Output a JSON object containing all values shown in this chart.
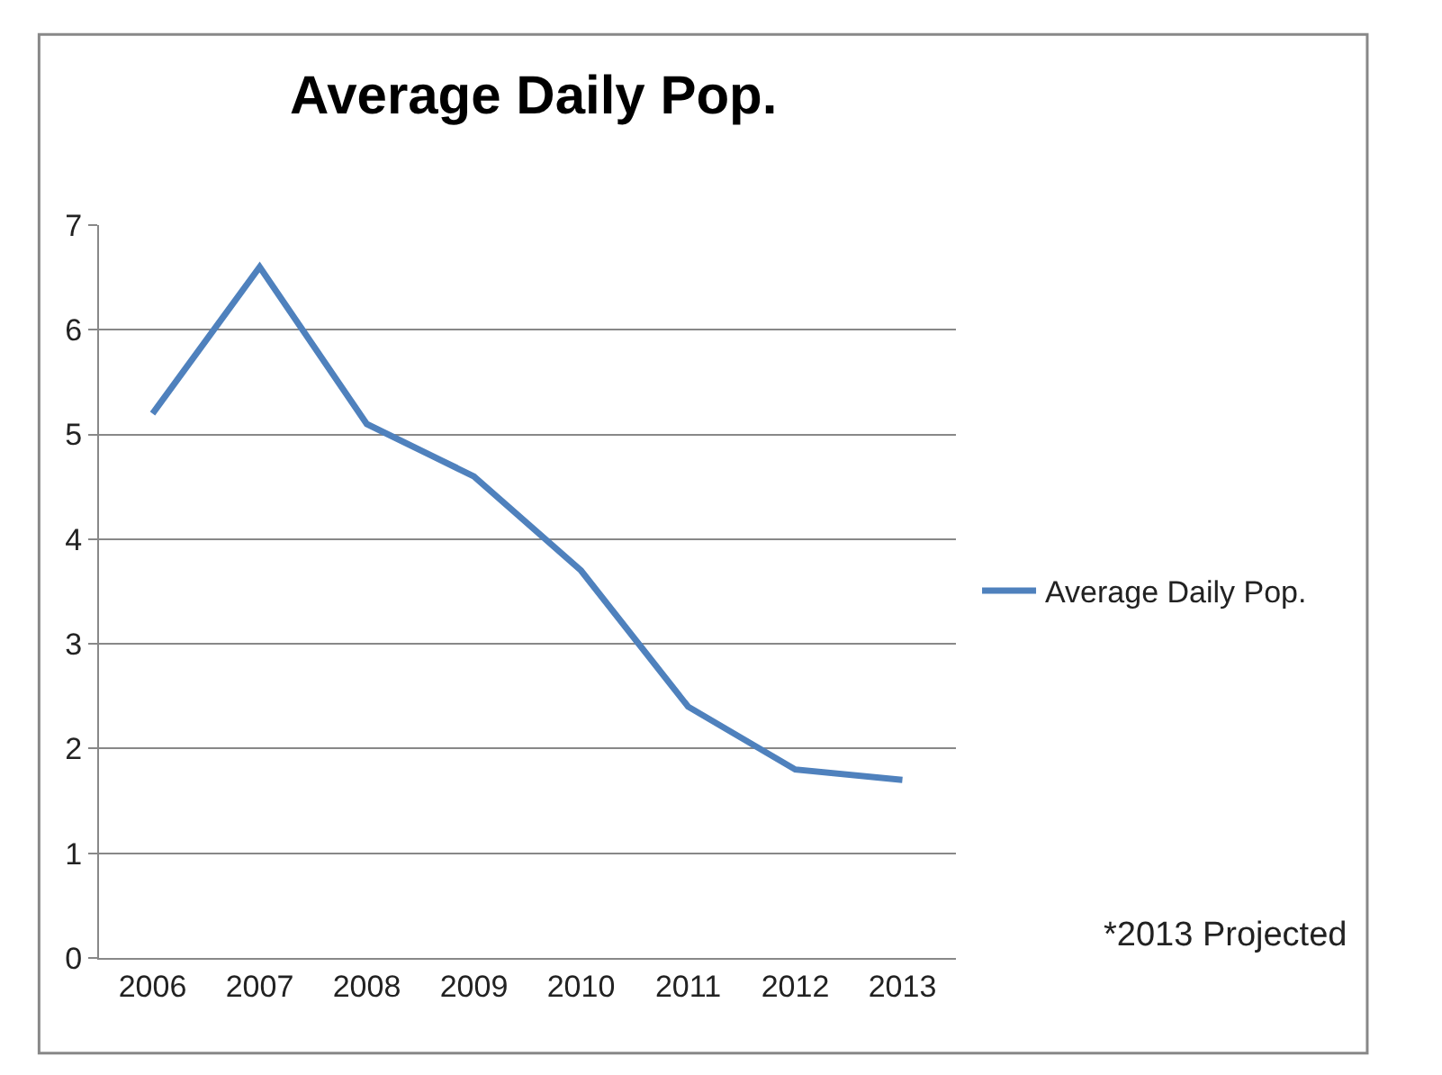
{
  "chart_data": {
    "type": "line",
    "title": "Average Daily Pop.",
    "categories": [
      "2006",
      "2007",
      "2008",
      "2009",
      "2010",
      "2011",
      "2012",
      "2013"
    ],
    "series": [
      {
        "name": "Average Daily Pop.",
        "color": "#4f81bd",
        "values": [
          5.2,
          6.6,
          5.1,
          4.6,
          3.7,
          2.4,
          1.8,
          1.7
        ]
      }
    ],
    "ylim": [
      0,
      7
    ],
    "yticks": [
      0,
      1,
      2,
      3,
      4,
      5,
      6,
      7
    ],
    "grid": "y",
    "legend": "right",
    "marker": "none",
    "line_style": "solid",
    "annotations": [
      "*2013 Projected"
    ]
  }
}
